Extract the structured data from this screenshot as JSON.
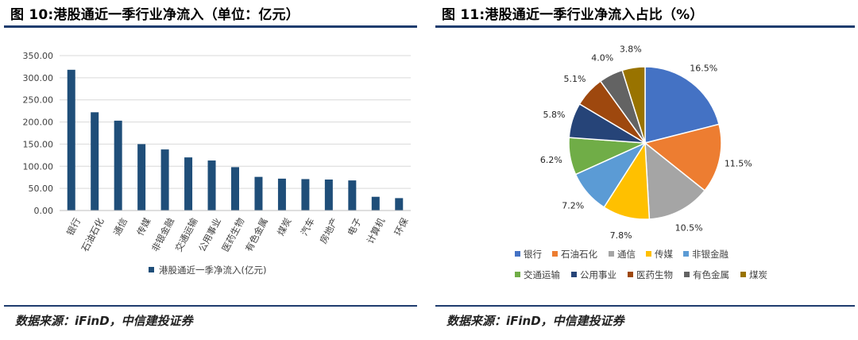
{
  "left": {
    "title": "图 10:港股通近一季行业净流入（单位：亿元）",
    "source": "数据来源：iFinD，中信建投证券"
  },
  "right": {
    "title": "图 11:港股通近一季行业净流入占比（%）",
    "source": "数据来源：iFinD，中信建投证券"
  },
  "colors": {
    "rule": "#1f3c6e",
    "bar": "#1f4e79",
    "grid": "#d9d9d9"
  },
  "chart_data": [
    {
      "type": "bar",
      "title": "",
      "categories": [
        "银行",
        "石油石化",
        "通信",
        "传媒",
        "非银金融",
        "交通运输",
        "公用事业",
        "医药生物",
        "有色金属",
        "煤炭",
        "汽车",
        "房地产",
        "电子",
        "计算机",
        "环保"
      ],
      "series": [
        {
          "name": "港股通近一季净流入(亿元)",
          "values": [
            318,
            222,
            203,
            150,
            138,
            120,
            113,
            98,
            76,
            72,
            71,
            70,
            68,
            31,
            28
          ]
        }
      ],
      "ylim": [
        0,
        350
      ],
      "yticks": [
        "0.00",
        "50.00",
        "100.00",
        "150.00",
        "200.00",
        "250.00",
        "300.00",
        "350.00"
      ],
      "grid": true,
      "legend": "bottom",
      "xlabel": "",
      "ylabel": ""
    },
    {
      "type": "pie",
      "title": "",
      "slices": [
        {
          "label": "银行",
          "value": 16.5,
          "text": "16.5%",
          "color": "#4472c4"
        },
        {
          "label": "石油石化",
          "value": 11.5,
          "text": "11.5%",
          "color": "#ed7d31"
        },
        {
          "label": "通信",
          "value": 10.5,
          "text": "10.5%",
          "color": "#a5a5a5"
        },
        {
          "label": "传媒",
          "value": 7.8,
          "text": "7.8%",
          "color": "#ffc000"
        },
        {
          "label": "非银金融",
          "value": 7.2,
          "text": "7.2%",
          "color": "#5b9bd5"
        },
        {
          "label": "交通运输",
          "value": 6.2,
          "text": "6.2%",
          "color": "#70ad47"
        },
        {
          "label": "公用事业",
          "value": 5.8,
          "text": "5.8%",
          "color": "#264478"
        },
        {
          "label": "医药生物",
          "value": 5.1,
          "text": "5.1%",
          "color": "#9e480e"
        },
        {
          "label": "有色金属",
          "value": 4.0,
          "text": "4.0%",
          "color": "#636363"
        },
        {
          "label": "煤炭",
          "value": 3.8,
          "text": "3.8%",
          "color": "#997300"
        }
      ],
      "legend": "bottom"
    }
  ]
}
